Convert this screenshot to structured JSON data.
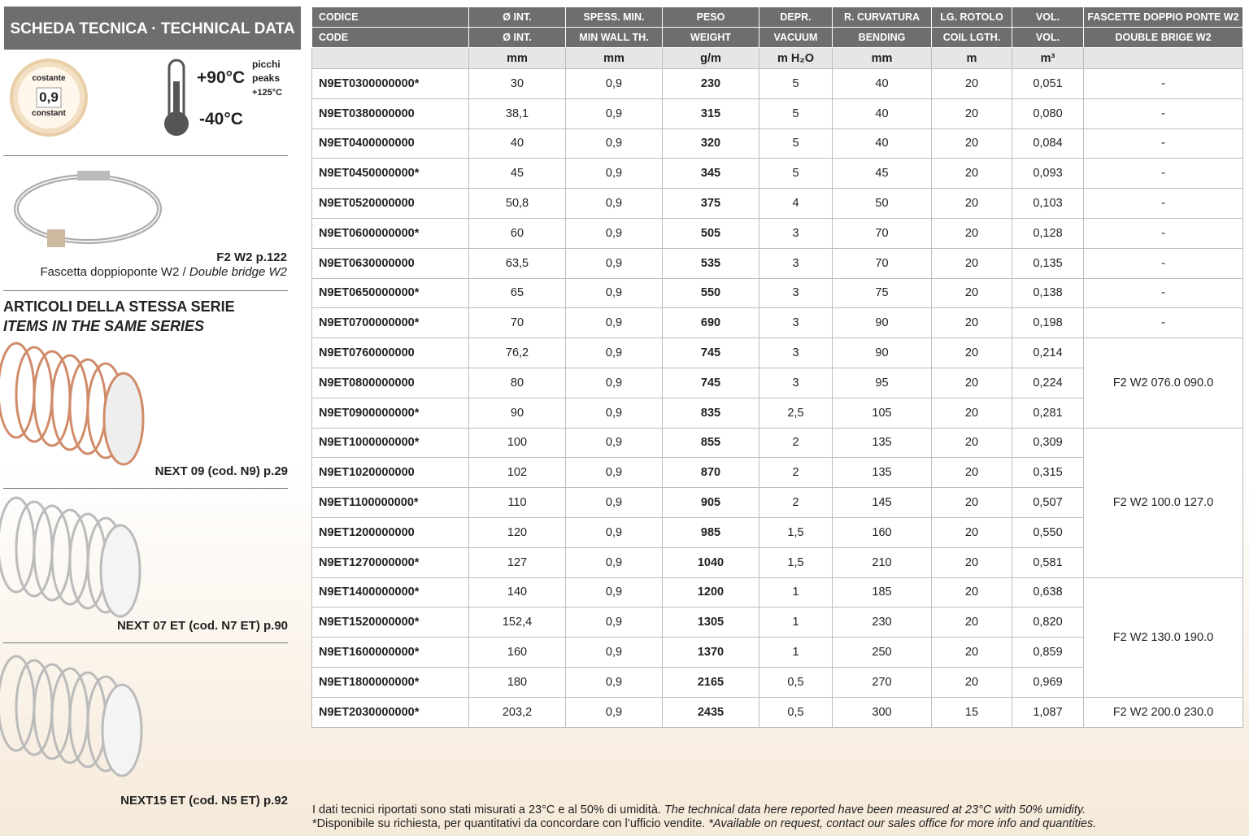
{
  "sidebar": {
    "title": "SCHEDA TECNICA · TECHNICAL DATA",
    "badge": {
      "top": "costante",
      "value": "0,9",
      "bottom": "constant"
    },
    "temperature": {
      "max": "+90°C",
      "min": "-40°C",
      "peaks_it": "picchi",
      "peaks_en": "peaks",
      "peaks_value": "+125°C"
    },
    "clamp": {
      "ref": "F2 W2 p.122",
      "caption_it": "Fascetta doppioponte W2 / ",
      "caption_en": "Double bridge W2"
    },
    "series_title_it": "ARTICOLI DELLA STESSA SERIE",
    "series_title_en": "ITEMS IN THE SAME SERIES",
    "items": [
      "NEXT 09 (cod. N9) p.29",
      "NEXT 07 ET (cod. N7 ET) p.90",
      "NEXT15 ET (cod. N5 ET) p.92"
    ]
  },
  "table": {
    "headers_it": [
      "CODICE",
      "Ø INT.",
      "SPESS. MIN.",
      "PESO",
      "DEPR.",
      "R. CURVATURA",
      "LG. ROTOLO",
      "VOL.",
      "FASCETTE DOPPIO PONTE W2"
    ],
    "headers_en": [
      "CODE",
      "Ø INT.",
      "MIN WALL TH.",
      "WEIGHT",
      "VACUUM",
      "BENDING",
      "COIL LGTH.",
      "VOL.",
      "DOUBLE BRIGE W2"
    ],
    "units": [
      null,
      "mm",
      "mm",
      "g/m",
      "m H₂O",
      "mm",
      "m",
      "m³",
      null
    ],
    "rows": [
      [
        "N9ET0300000000*",
        "30",
        "0,9",
        "230",
        "5",
        "40",
        "20",
        "0,051",
        "-"
      ],
      [
        "N9ET0380000000",
        "38,1",
        "0,9",
        "315",
        "5",
        "40",
        "20",
        "0,080",
        "-"
      ],
      [
        "N9ET0400000000",
        "40",
        "0,9",
        "320",
        "5",
        "40",
        "20",
        "0,084",
        "-"
      ],
      [
        "N9ET0450000000*",
        "45",
        "0,9",
        "345",
        "5",
        "45",
        "20",
        "0,093",
        "-"
      ],
      [
        "N9ET0520000000",
        "50,8",
        "0,9",
        "375",
        "4",
        "50",
        "20",
        "0,103",
        "-"
      ],
      [
        "N9ET0600000000*",
        "60",
        "0,9",
        "505",
        "3",
        "70",
        "20",
        "0,128",
        "-"
      ],
      [
        "N9ET0630000000",
        "63,5",
        "0,9",
        "535",
        "3",
        "70",
        "20",
        "0,135",
        "-"
      ],
      [
        "N9ET0650000000*",
        "65",
        "0,9",
        "550",
        "3",
        "75",
        "20",
        "0,138",
        "-"
      ],
      [
        "N9ET0700000000*",
        "70",
        "0,9",
        "690",
        "3",
        "90",
        "20",
        "0,198",
        "-"
      ],
      [
        "N9ET0760000000",
        "76,2",
        "0,9",
        "745",
        "3",
        "90",
        "20",
        "0,214",
        "F2 W2 076.0 090.0"
      ],
      [
        "N9ET0800000000",
        "80",
        "0,9",
        "745",
        "3",
        "95",
        "20",
        "0,224",
        null
      ],
      [
        "N9ET0900000000*",
        "90",
        "0,9",
        "835",
        "2,5",
        "105",
        "20",
        "0,281",
        null
      ],
      [
        "N9ET1000000000*",
        "100",
        "0,9",
        "855",
        "2",
        "135",
        "20",
        "0,309",
        "F2 W2 100.0 127.0"
      ],
      [
        "N9ET1020000000",
        "102",
        "0,9",
        "870",
        "2",
        "135",
        "20",
        "0,315",
        null
      ],
      [
        "N9ET1100000000*",
        "110",
        "0,9",
        "905",
        "2",
        "145",
        "20",
        "0,507",
        null
      ],
      [
        "N9ET1200000000",
        "120",
        "0,9",
        "985",
        "1,5",
        "160",
        "20",
        "0,550",
        null
      ],
      [
        "N9ET1270000000*",
        "127",
        "0,9",
        "1040",
        "1,5",
        "210",
        "20",
        "0,581",
        null
      ],
      [
        "N9ET1400000000*",
        "140",
        "0,9",
        "1200",
        "1",
        "185",
        "20",
        "0,638",
        "F2 W2 130.0 190.0"
      ],
      [
        "N9ET1520000000*",
        "152,4",
        "0,9",
        "1305",
        "1",
        "230",
        "20",
        "0,820",
        null
      ],
      [
        "N9ET1600000000*",
        "160",
        "0,9",
        "1370",
        "1",
        "250",
        "20",
        "0,859",
        null
      ],
      [
        "N9ET1800000000*",
        "180",
        "0,9",
        "2165",
        "0,5",
        "270",
        "20",
        "0,969",
        null
      ],
      [
        "N9ET2030000000*",
        "203,2",
        "0,9",
        "2435",
        "0,5",
        "300",
        "15",
        "1,087",
        "F2 W2 200.0 230.0"
      ]
    ]
  },
  "footer": {
    "line1_it": "I dati tecnici riportati sono stati misurati a 23°C e al 50% di umidità. ",
    "line1_en": "The technical data here reported have been measured at 23°C with 50% umidity.",
    "line2_it": "*Disponibile su richiesta, per quantitativi da concordare con l’ufficio vendite. ",
    "line2_en": "*Available on request, contact our sales office for more info and quantities."
  }
}
